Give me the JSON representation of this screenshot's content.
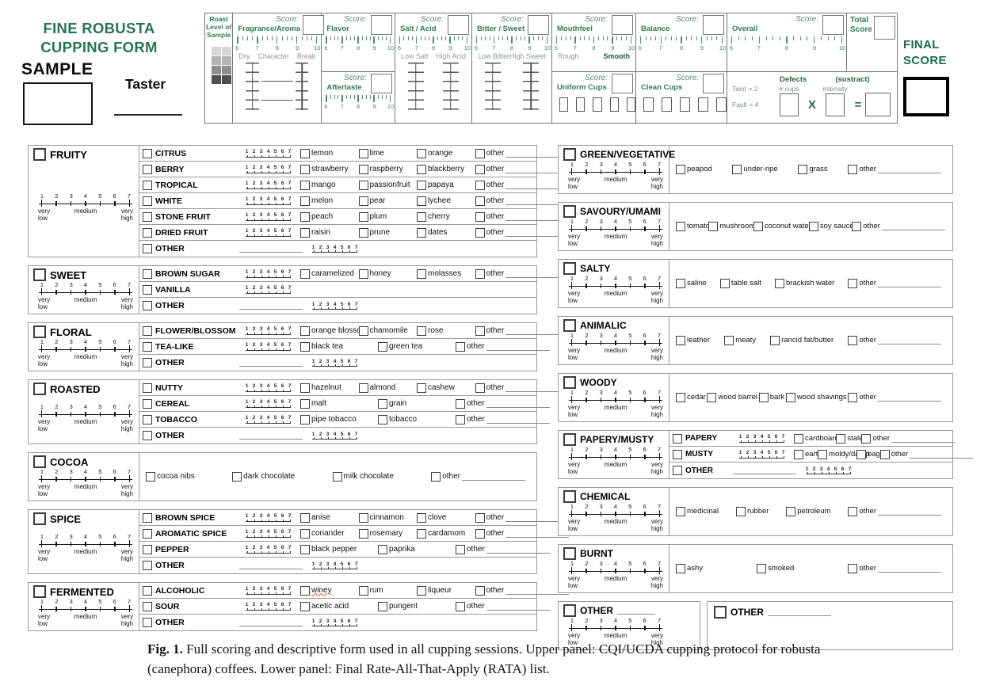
{
  "page": {
    "title": [
      "FINE ROBUSTA",
      "CUPPING FORM"
    ],
    "sample_label": "SAMPLE",
    "taster_label": "Taster",
    "final_score": [
      "FINAL",
      "SCORE"
    ]
  },
  "form": {
    "score_label": "Score:",
    "ruler_numbers": [
      "6",
      "7",
      "8",
      "9",
      "10"
    ],
    "roast": {
      "label": "Roast Level of Sample",
      "shades": [
        "#d6d6d6",
        "#b4b4b4",
        "#8e8e8e",
        "#4f4f4f"
      ]
    },
    "fragrance": {
      "label": "Fragrance/Aroma",
      "subs": [
        "Dry",
        "Character",
        "Break"
      ]
    },
    "flavor": {
      "label": "Flavor"
    },
    "aftertaste": {
      "label": "Aftertaste"
    },
    "salt_acid": {
      "label": "Salt / Acid",
      "subs": [
        "Low Salt",
        "High Acid"
      ]
    },
    "bitter_sweet": {
      "label": "Bitter / Sweet",
      "subs": [
        "Low Bitter",
        "High Sweet"
      ]
    },
    "mouthfeel": {
      "label": "Mouthfeel",
      "subs": [
        "Rough",
        "Smooth"
      ]
    },
    "uniform_cups": {
      "label": "Uniform Cups",
      "cups": 5
    },
    "balance": {
      "label": "Balance"
    },
    "clean_cups": {
      "label": "Clean Cups",
      "cups": 5
    },
    "overall": {
      "label": "Overall"
    },
    "total_score": {
      "label": "Total Score"
    },
    "defects": {
      "title": "Defects",
      "subtract_label": "(sustract)",
      "taint": "Taint = 2",
      "fault": "Fault = 4",
      "cups": "# cups",
      "intensity": "intensity",
      "multiply": "X",
      "equals": "="
    }
  },
  "rata": {
    "mini_scale": [
      "1",
      "2",
      "3",
      "4",
      "5",
      "6",
      "7"
    ],
    "axis_numbers": [
      "1",
      "2",
      "3",
      "4",
      "5",
      "6",
      "7"
    ],
    "axis_labels": {
      "left": "very\nlow",
      "mid": "medium",
      "right": "very\nhigh"
    },
    "other_label": "other",
    "wavy_descriptors": [
      "winey"
    ],
    "left_sections": [
      {
        "title": "FRUITY",
        "rows": [
          {
            "label": "CITRUS",
            "scale": true,
            "descriptors": [
              "lemon",
              "lime",
              "orange"
            ],
            "other": true
          },
          {
            "label": "BERRY",
            "scale": true,
            "descriptors": [
              "strawberry",
              "raspberry",
              "blackberry"
            ],
            "other": true
          },
          {
            "label": "TROPICAL",
            "scale": true,
            "descriptors": [
              "mango",
              "passionfruit",
              "papaya"
            ],
            "other": true
          },
          {
            "label": "WHITE",
            "scale": true,
            "descriptors": [
              "melon",
              "pear",
              "lychee"
            ],
            "other": true
          },
          {
            "label": "STONE FRUIT",
            "scale": true,
            "descriptors": [
              "peach",
              "plum",
              "cherry"
            ],
            "other": true
          },
          {
            "label": "DRIED FRUIT",
            "scale": true,
            "descriptors": [
              "raisin",
              "prune",
              "dates"
            ],
            "other": true
          },
          {
            "label": "OTHER",
            "line": true,
            "scale": true,
            "descriptors": [],
            "other": false
          }
        ]
      },
      {
        "title": "SWEET",
        "rows": [
          {
            "label": "BROWN SUGAR",
            "scale": true,
            "descriptors": [
              "caramelized",
              "honey",
              "molasses"
            ],
            "other": true
          },
          {
            "label": "VANILLA",
            "scale": true,
            "descriptors": [],
            "other": false
          },
          {
            "label": "OTHER",
            "line": true,
            "scale": true,
            "descriptors": [],
            "other": false
          }
        ]
      },
      {
        "title": "FLORAL",
        "rows": [
          {
            "label": "FLOWER/BLOSSOM",
            "scale": true,
            "descriptors": [
              "orange blossom",
              "chamomile",
              "rose"
            ],
            "other": true
          },
          {
            "label": "TEA-LIKE",
            "scale": true,
            "descriptors": [
              "black tea",
              "green tea"
            ],
            "other": true
          },
          {
            "label": "OTHER",
            "line": true,
            "scale": true,
            "descriptors": [],
            "other": false
          }
        ]
      },
      {
        "title": "ROASTED",
        "rows": [
          {
            "label": "NUTTY",
            "scale": true,
            "descriptors": [
              "hazelnut",
              "almond",
              "cashew"
            ],
            "other": true
          },
          {
            "label": "CEREAL",
            "scale": true,
            "descriptors": [
              "malt",
              "grain"
            ],
            "other": true
          },
          {
            "label": "TOBACCO",
            "scale": true,
            "descriptors": [
              "pipe tobacco",
              "tobacco"
            ],
            "other": true
          },
          {
            "label": "OTHER",
            "line": true,
            "scale": true,
            "descriptors": [],
            "other": false
          }
        ]
      },
      {
        "title": "COCOA",
        "flat": {
          "descriptors": [
            "cocoa nibs",
            "dark chocolate",
            "milk chocolate"
          ],
          "other": true
        }
      },
      {
        "title": "SPICE",
        "rows": [
          {
            "label": "BROWN SPICE",
            "scale": true,
            "descriptors": [
              "anise",
              "cinnamon",
              "clove"
            ],
            "other": true
          },
          {
            "label": "AROMATIC SPICE",
            "scale": true,
            "descriptors": [
              "coriander",
              "rosemary",
              "cardamom"
            ],
            "other": true
          },
          {
            "label": "PEPPER",
            "scale": true,
            "descriptors": [
              "black pepper",
              "paprika"
            ],
            "other": true
          },
          {
            "label": "OTHER",
            "line": true,
            "scale": true,
            "descriptors": [],
            "other": false
          }
        ]
      },
      {
        "title": "FERMENTED",
        "rows": [
          {
            "label": "ALCOHOLIC",
            "scale": true,
            "descriptors": [
              "winey",
              "rum",
              "liqueur"
            ],
            "other": true
          },
          {
            "label": "SOUR",
            "scale": true,
            "descriptors": [
              "acetic acid",
              "pungent"
            ],
            "other": true
          },
          {
            "label": "OTHER",
            "line": true,
            "scale": true,
            "descriptors": [],
            "other": false
          }
        ]
      }
    ],
    "right_sections": [
      {
        "title": "GREEN/VEGETATIVE",
        "flat": {
          "descriptors": [
            "peapod",
            "under-ripe",
            "grass"
          ],
          "other": true
        }
      },
      {
        "title": "SAVOURY/UMAMI",
        "flat": {
          "descriptors": [
            "tomato",
            "mushroom",
            "coconut water",
            "soy sauce"
          ],
          "other": true
        }
      },
      {
        "title": "SALTY",
        "flat": {
          "descriptors": [
            "saline",
            "table salt",
            "brackish water"
          ],
          "other": true
        }
      },
      {
        "title": "ANIMALIC",
        "flat": {
          "descriptors": [
            "leather",
            "meaty",
            "rancid fat/butter"
          ],
          "other": true
        }
      },
      {
        "title": "WOODY",
        "flat": {
          "descriptors": [
            "cedar",
            "wood barrel",
            "bark",
            "wood shavings"
          ],
          "other": true
        }
      },
      {
        "title": "PAPERY/MUSTY",
        "rows": [
          {
            "label": "PAPERY",
            "scale": true,
            "descriptors": [
              "cardboard",
              "stale"
            ],
            "other": true
          },
          {
            "label": "MUSTY",
            "scale": true,
            "descriptors": [
              "earthy",
              "moldy/damp",
              "baggy"
            ],
            "other": true
          },
          {
            "label": "OTHER",
            "line": true,
            "scale": true,
            "descriptors": [],
            "other": false
          }
        ]
      },
      {
        "title": "CHEMICAL",
        "flat": {
          "descriptors": [
            "medicinal",
            "rubber",
            "petroleum"
          ],
          "other": true
        }
      },
      {
        "title": "BURNT",
        "flat": {
          "descriptors": [
            "ashy",
            "smoked"
          ],
          "other": true
        }
      }
    ],
    "bottom_other": {
      "title": "OTHER",
      "second_box_label": "OTHER"
    }
  },
  "caption": {
    "prefix": "Fig. 1.",
    "text": "  Full scoring and descriptive form used in all cupping sessions. Upper panel: CQI/UCDA cupping protocol for robusta (canephora) coffees. Lower panel: Final Rate-All-That-Apply (RATA) list."
  }
}
